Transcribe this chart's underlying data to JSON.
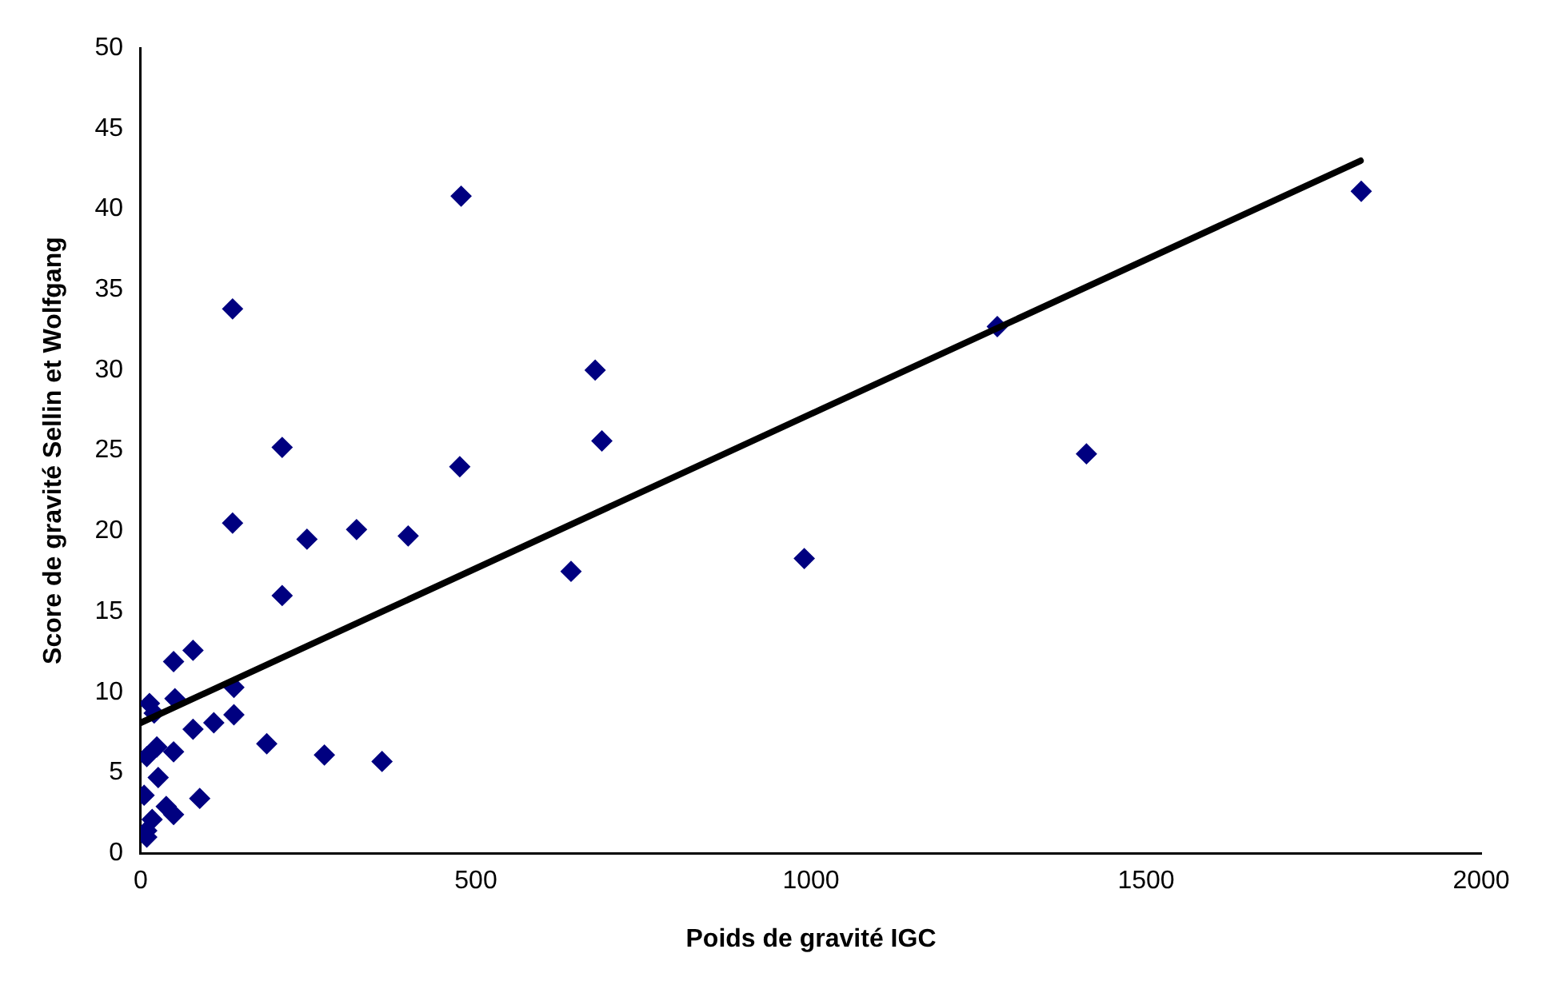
{
  "chart_data": {
    "type": "scatter",
    "xlabel": "Poids de gravité IGC",
    "ylabel": "Score de gravité Sellin et Wolfgang",
    "xlim": [
      0,
      2000
    ],
    "ylim": [
      0,
      50
    ],
    "xticks": [
      0,
      500,
      1000,
      1500,
      2000
    ],
    "yticks": [
      0,
      5,
      10,
      15,
      20,
      25,
      30,
      35,
      40,
      45,
      50
    ],
    "grid": false,
    "legend": false,
    "marker": "diamond",
    "series": [
      {
        "color": "#000080",
        "x": [
          137,
          678,
          688,
          211,
          476,
          137,
          248,
          322,
          399,
          642,
          211,
          49,
          78,
          139,
          13,
          51,
          20,
          139,
          78,
          109,
          188,
          274,
          360,
          24,
          9,
          49,
          26,
          5,
          88,
          38,
          49,
          17,
          9,
          9,
          990,
          1278,
          1411,
          1821,
          478
        ],
        "values": [
          33.8,
          30.0,
          25.6,
          25.2,
          24.0,
          20.5,
          19.5,
          20.1,
          19.7,
          17.5,
          16.0,
          11.9,
          12.6,
          10.3,
          9.3,
          9.6,
          8.7,
          8.6,
          7.7,
          8.1,
          6.8,
          6.1,
          5.7,
          6.6,
          6.0,
          6.3,
          4.7,
          3.6,
          3.4,
          2.9,
          2.4,
          2.1,
          1.4,
          1.0,
          18.3,
          32.7,
          24.8,
          41.1,
          40.8
        ]
      },
      {
        "type": "line",
        "color": "#000000",
        "marker": "none",
        "x": [
          0,
          1820
        ],
        "values": [
          8.1,
          43.0
        ]
      }
    ]
  }
}
